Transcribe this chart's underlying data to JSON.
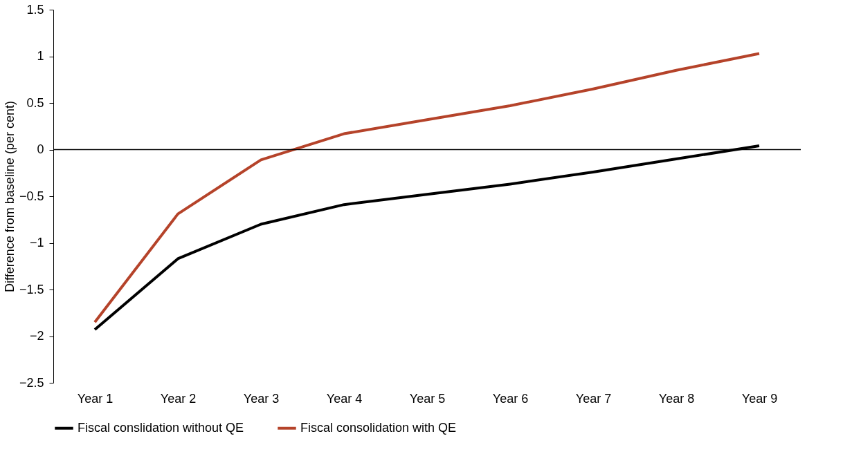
{
  "chart_data": {
    "type": "line",
    "ylabel": "Difference from baseline (per cent)",
    "categories": [
      "Year 1",
      "Year 2",
      "Year 3",
      "Year 4",
      "Year 5",
      "Year 6",
      "Year 7",
      "Year 8",
      "Year 9"
    ],
    "series": [
      {
        "name": "Fiscal conslidation without QE",
        "color": "#000000",
        "values": [
          -1.93,
          -1.17,
          -0.8,
          -0.59,
          -0.48,
          -0.37,
          -0.24,
          -0.1,
          0.04
        ]
      },
      {
        "name": "Fiscal consolidation with QE",
        "color": "#b5432a",
        "values": [
          -1.85,
          -0.69,
          -0.11,
          0.17,
          0.32,
          0.47,
          0.65,
          0.85,
          1.03
        ]
      }
    ],
    "ylim": [
      -2.5,
      1.5
    ],
    "yticks": [
      -2.5,
      -2,
      -1.5,
      -1,
      -0.5,
      0,
      0.5,
      1,
      1.5
    ],
    "ref_lines": [
      {
        "axis": "y",
        "value": 0,
        "color": "#000000"
      }
    ],
    "grid": false,
    "legend": "bottom",
    "marker": "none",
    "line_style": "solid"
  }
}
